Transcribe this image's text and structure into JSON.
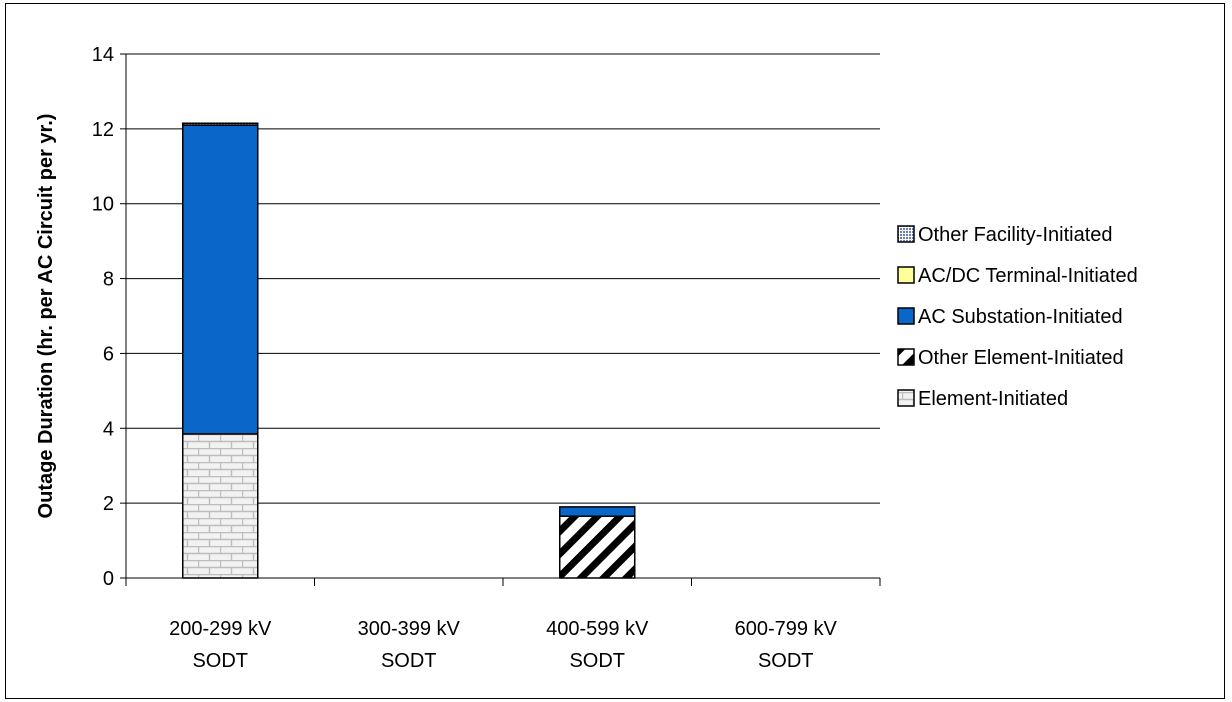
{
  "chart_data": {
    "type": "bar",
    "stacked": true,
    "ylabel": "Outage Duration (hr. per AC Circuit per yr.)",
    "ylim": [
      0,
      14
    ],
    "yticks": [
      0,
      2,
      4,
      6,
      8,
      10,
      12,
      14
    ],
    "grid": true,
    "legend_position": "right",
    "categories": [
      [
        "200-299 kV",
        "SODT"
      ],
      [
        "300-399 kV",
        "SODT"
      ],
      [
        "400-599 kV",
        "SODT"
      ],
      [
        "600-799 kV",
        "SODT"
      ]
    ],
    "series": [
      {
        "name": "Element-Initiated",
        "values": [
          3.85,
          0,
          0,
          0
        ],
        "pattern": "brick",
        "color": "#e6e6e6"
      },
      {
        "name": "Other Element-Initiated",
        "values": [
          0,
          0,
          1.65,
          0
        ],
        "pattern": "diagonal",
        "color": "#000000"
      },
      {
        "name": "AC Substation-Initiated",
        "values": [
          8.25,
          0,
          0.25,
          0
        ],
        "pattern": "solid",
        "color": "#0a66c8"
      },
      {
        "name": "AC/DC Terminal-Initiated",
        "values": [
          0,
          0,
          0,
          0
        ],
        "pattern": "solid",
        "color": "#ffff99"
      },
      {
        "name": "Other Facility-Initiated",
        "values": [
          0.05,
          0,
          0,
          0
        ],
        "pattern": "dots",
        "color": "#6a7fb5"
      }
    ]
  }
}
